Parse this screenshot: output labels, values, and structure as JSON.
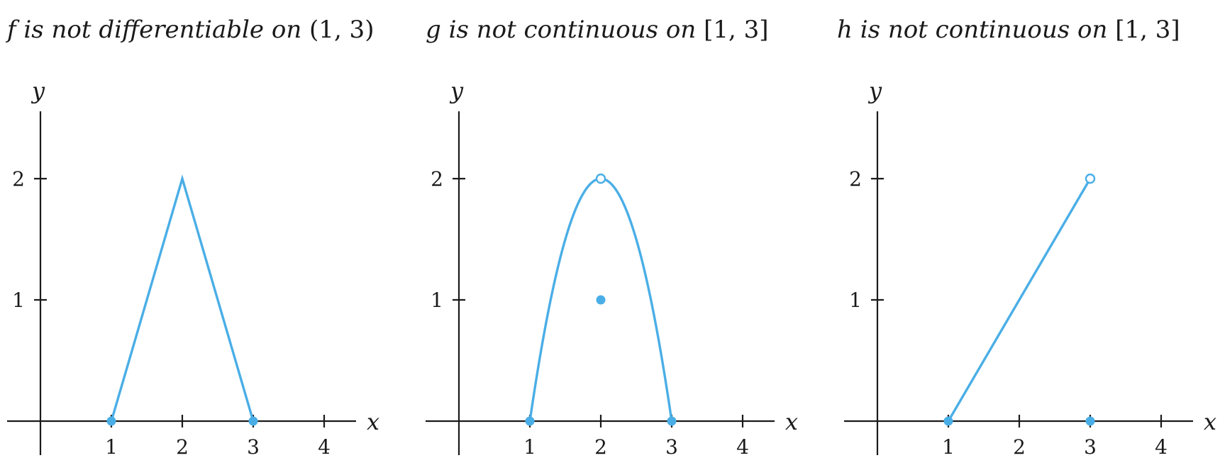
{
  "chart_data": [
    {
      "type": "line",
      "title": {
        "fn": "f",
        "text": " is not differentiable on ",
        "interval": "(1, 3)"
      },
      "xlabel": "x",
      "ylabel": "y",
      "xlim": [
        -0.5,
        4.5
      ],
      "ylim": [
        -0.3,
        2.6
      ],
      "xticks": [
        1,
        2,
        3,
        4
      ],
      "yticks": [
        1,
        2
      ],
      "series": [
        {
          "kind": "polyline",
          "points": [
            [
              1,
              0
            ],
            [
              2,
              2
            ],
            [
              3,
              0
            ]
          ]
        }
      ],
      "markers": [
        {
          "x": 1,
          "y": 0,
          "style": "filled"
        },
        {
          "x": 3,
          "y": 0,
          "style": "filled"
        }
      ]
    },
    {
      "type": "line",
      "title": {
        "fn": "g",
        "text": " is not continuous on ",
        "interval": "[1, 3]"
      },
      "xlabel": "x",
      "ylabel": "y",
      "xlim": [
        -0.5,
        4.5
      ],
      "ylim": [
        -0.3,
        2.6
      ],
      "xticks": [
        1,
        2,
        3,
        4
      ],
      "yticks": [
        1,
        2
      ],
      "series": [
        {
          "kind": "function",
          "expression": "2 - 2*(x-2)^2",
          "domain": [
            1,
            3
          ]
        }
      ],
      "markers": [
        {
          "x": 1,
          "y": 0,
          "style": "filled"
        },
        {
          "x": 3,
          "y": 0,
          "style": "filled"
        },
        {
          "x": 2,
          "y": 2,
          "style": "open"
        },
        {
          "x": 2,
          "y": 1,
          "style": "filled"
        }
      ]
    },
    {
      "type": "line",
      "title": {
        "fn": "h",
        "text": " is not continuous on ",
        "interval": "[1, 3]"
      },
      "xlabel": "x",
      "ylabel": "y",
      "xlim": [
        -0.5,
        4.5
      ],
      "ylim": [
        -0.3,
        2.6
      ],
      "xticks": [
        1,
        2,
        3,
        4
      ],
      "yticks": [
        1,
        2
      ],
      "series": [
        {
          "kind": "polyline",
          "points": [
            [
              1,
              0
            ],
            [
              3,
              2
            ]
          ]
        }
      ],
      "markers": [
        {
          "x": 1,
          "y": 0,
          "style": "filled"
        },
        {
          "x": 3,
          "y": 2,
          "style": "open"
        },
        {
          "x": 3,
          "y": 0,
          "style": "filled"
        }
      ]
    }
  ],
  "colors": {
    "curve": "#4aaee6",
    "axis": "#1a1a1a"
  }
}
